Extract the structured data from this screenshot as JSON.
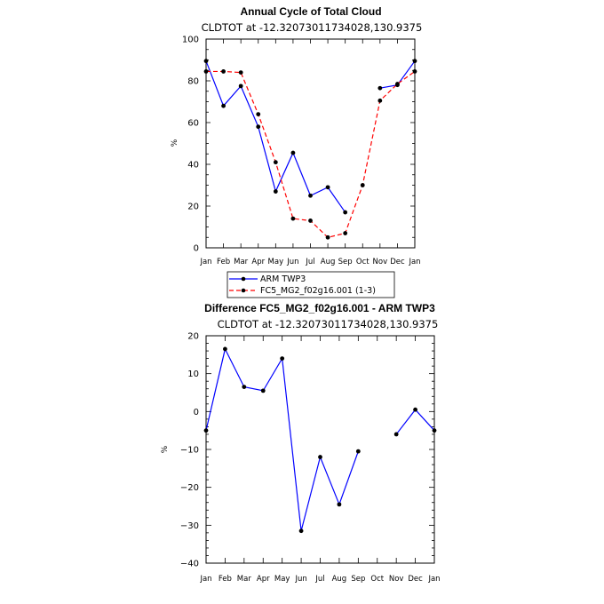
{
  "chart_data": [
    {
      "type": "line",
      "title": "Annual Cycle of Total Cloud",
      "subtitle": "CLDTOT at -12.32073011734028,130.9375",
      "xlabel": "",
      "ylabel": "%",
      "categories": [
        "Jan",
        "Feb",
        "Mar",
        "Apr",
        "May",
        "Jun",
        "Jul",
        "Aug",
        "Sep",
        "Oct",
        "Nov",
        "Dec",
        "Jan"
      ],
      "ylim": [
        0,
        100
      ],
      "yticks": [
        0,
        20,
        40,
        60,
        80,
        100
      ],
      "legend_position": "bottom",
      "series": [
        {
          "name": "ARM TWP3",
          "color": "#0000ff",
          "dash": "solid",
          "values": [
            89.5,
            68,
            77.5,
            58,
            27,
            45.5,
            25,
            29,
            17,
            null,
            76.5,
            78,
            89.5
          ]
        },
        {
          "name": "FC5_MG2_f02g16.001 (1-3)",
          "color": "#ff0000",
          "dash": "dashed",
          "values": [
            84.5,
            84.5,
            84,
            64,
            41,
            14,
            13,
            5,
            7,
            30,
            70.5,
            78.5,
            84.5
          ]
        }
      ]
    },
    {
      "type": "line",
      "title": "Difference FC5_MG2_f02g16.001 - ARM TWP3",
      "subtitle": "CLDTOT at -12.32073011734028,130.9375",
      "xlabel": "",
      "ylabel": "%",
      "categories": [
        "Jan",
        "Feb",
        "Mar",
        "Apr",
        "May",
        "Jun",
        "Jul",
        "Aug",
        "Sep",
        "Oct",
        "Nov",
        "Dec",
        "Jan"
      ],
      "ylim": [
        -40,
        20
      ],
      "yticks": [
        -40,
        -30,
        -20,
        -10,
        0,
        10,
        20
      ],
      "series": [
        {
          "color": "#0000ff",
          "values": [
            -5,
            16.5,
            6.5,
            5.5,
            14,
            -31.5,
            -12,
            -24.5,
            -10.5,
            null,
            -6,
            0.5,
            -5
          ]
        }
      ]
    }
  ]
}
